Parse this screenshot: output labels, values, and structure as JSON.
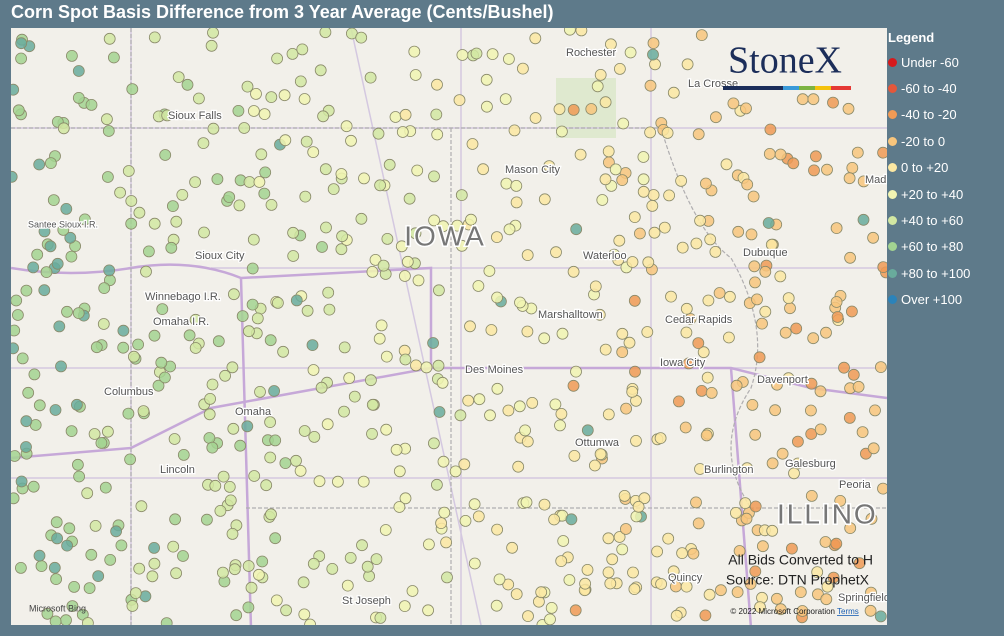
{
  "header": {
    "title": "Corn Spot Basis Difference from 3 Year Average (Cents/Bushel)"
  },
  "legend": {
    "title": "Legend",
    "items": [
      {
        "label": "Under -60",
        "color": "#d7191c"
      },
      {
        "label": "-60 to -40",
        "color": "#e4573a"
      },
      {
        "label": "-40 to -20",
        "color": "#f09a55"
      },
      {
        "label": "-20 to 0",
        "color": "#f8c57c"
      },
      {
        "label": "0 to +20",
        "color": "#fbe7a2"
      },
      {
        "label": "+20 to +40",
        "color": "#f1f4b2"
      },
      {
        "label": "+40 to +60",
        "color": "#d2e7a2"
      },
      {
        "label": "+60 to +80",
        "color": "#a3d391"
      },
      {
        "label": "+80 to +100",
        "color": "#69ab9c"
      },
      {
        "label": "Over +100",
        "color": "#2b83ba"
      }
    ]
  },
  "map": {
    "brand": "StoneX",
    "states": [
      "IOWA",
      "ILLINO"
    ],
    "places": [
      "Rochester",
      "La Crosse",
      "Sioux Falls",
      "Mason City",
      "Madison",
      "Santee Sioux I.R.",
      "Sioux City",
      "Waterloo",
      "Dubuque",
      "Winnebago I.R.",
      "Omaha I.R.",
      "Marshalltown",
      "Cedar Rapids",
      "Iowa City",
      "Davenport",
      "Columbus",
      "Des Moines",
      "Omaha",
      "Ottumwa",
      "Burlington",
      "Galesburg",
      "Peoria",
      "Lincoln",
      "Quincy",
      "St Joseph",
      "Springfield"
    ],
    "notes": [
      "All Bids Converted to H",
      "Source: DTN ProphetX"
    ],
    "bing": "Microsoft Bing",
    "copyright": "© 2022 Microsoft Corporation",
    "terms": "Terms"
  }
}
